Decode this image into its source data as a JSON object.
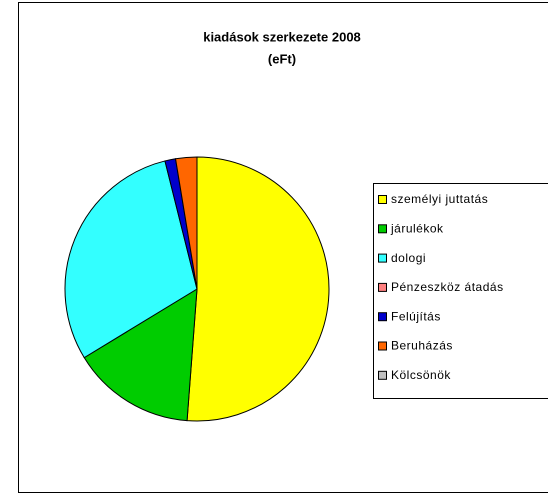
{
  "chart_data": {
    "type": "pie",
    "title": "kiadások szerkezete 2008",
    "subtitle": "(eFt)",
    "categories": [
      "személyi juttatás",
      "járulékok",
      "dologi",
      "Pénzeszköz átadás",
      "Felújítás",
      "Beruházás",
      "Kölcsönök"
    ],
    "values": [
      51.2,
      15.1,
      29.8,
      0,
      1.3,
      2.6,
      0
    ],
    "colors": [
      "#ffff00",
      "#00cc00",
      "#33ffff",
      "#ff8080",
      "#0000cc",
      "#ff6600",
      "#c0c0c0"
    ],
    "legend": "right"
  }
}
